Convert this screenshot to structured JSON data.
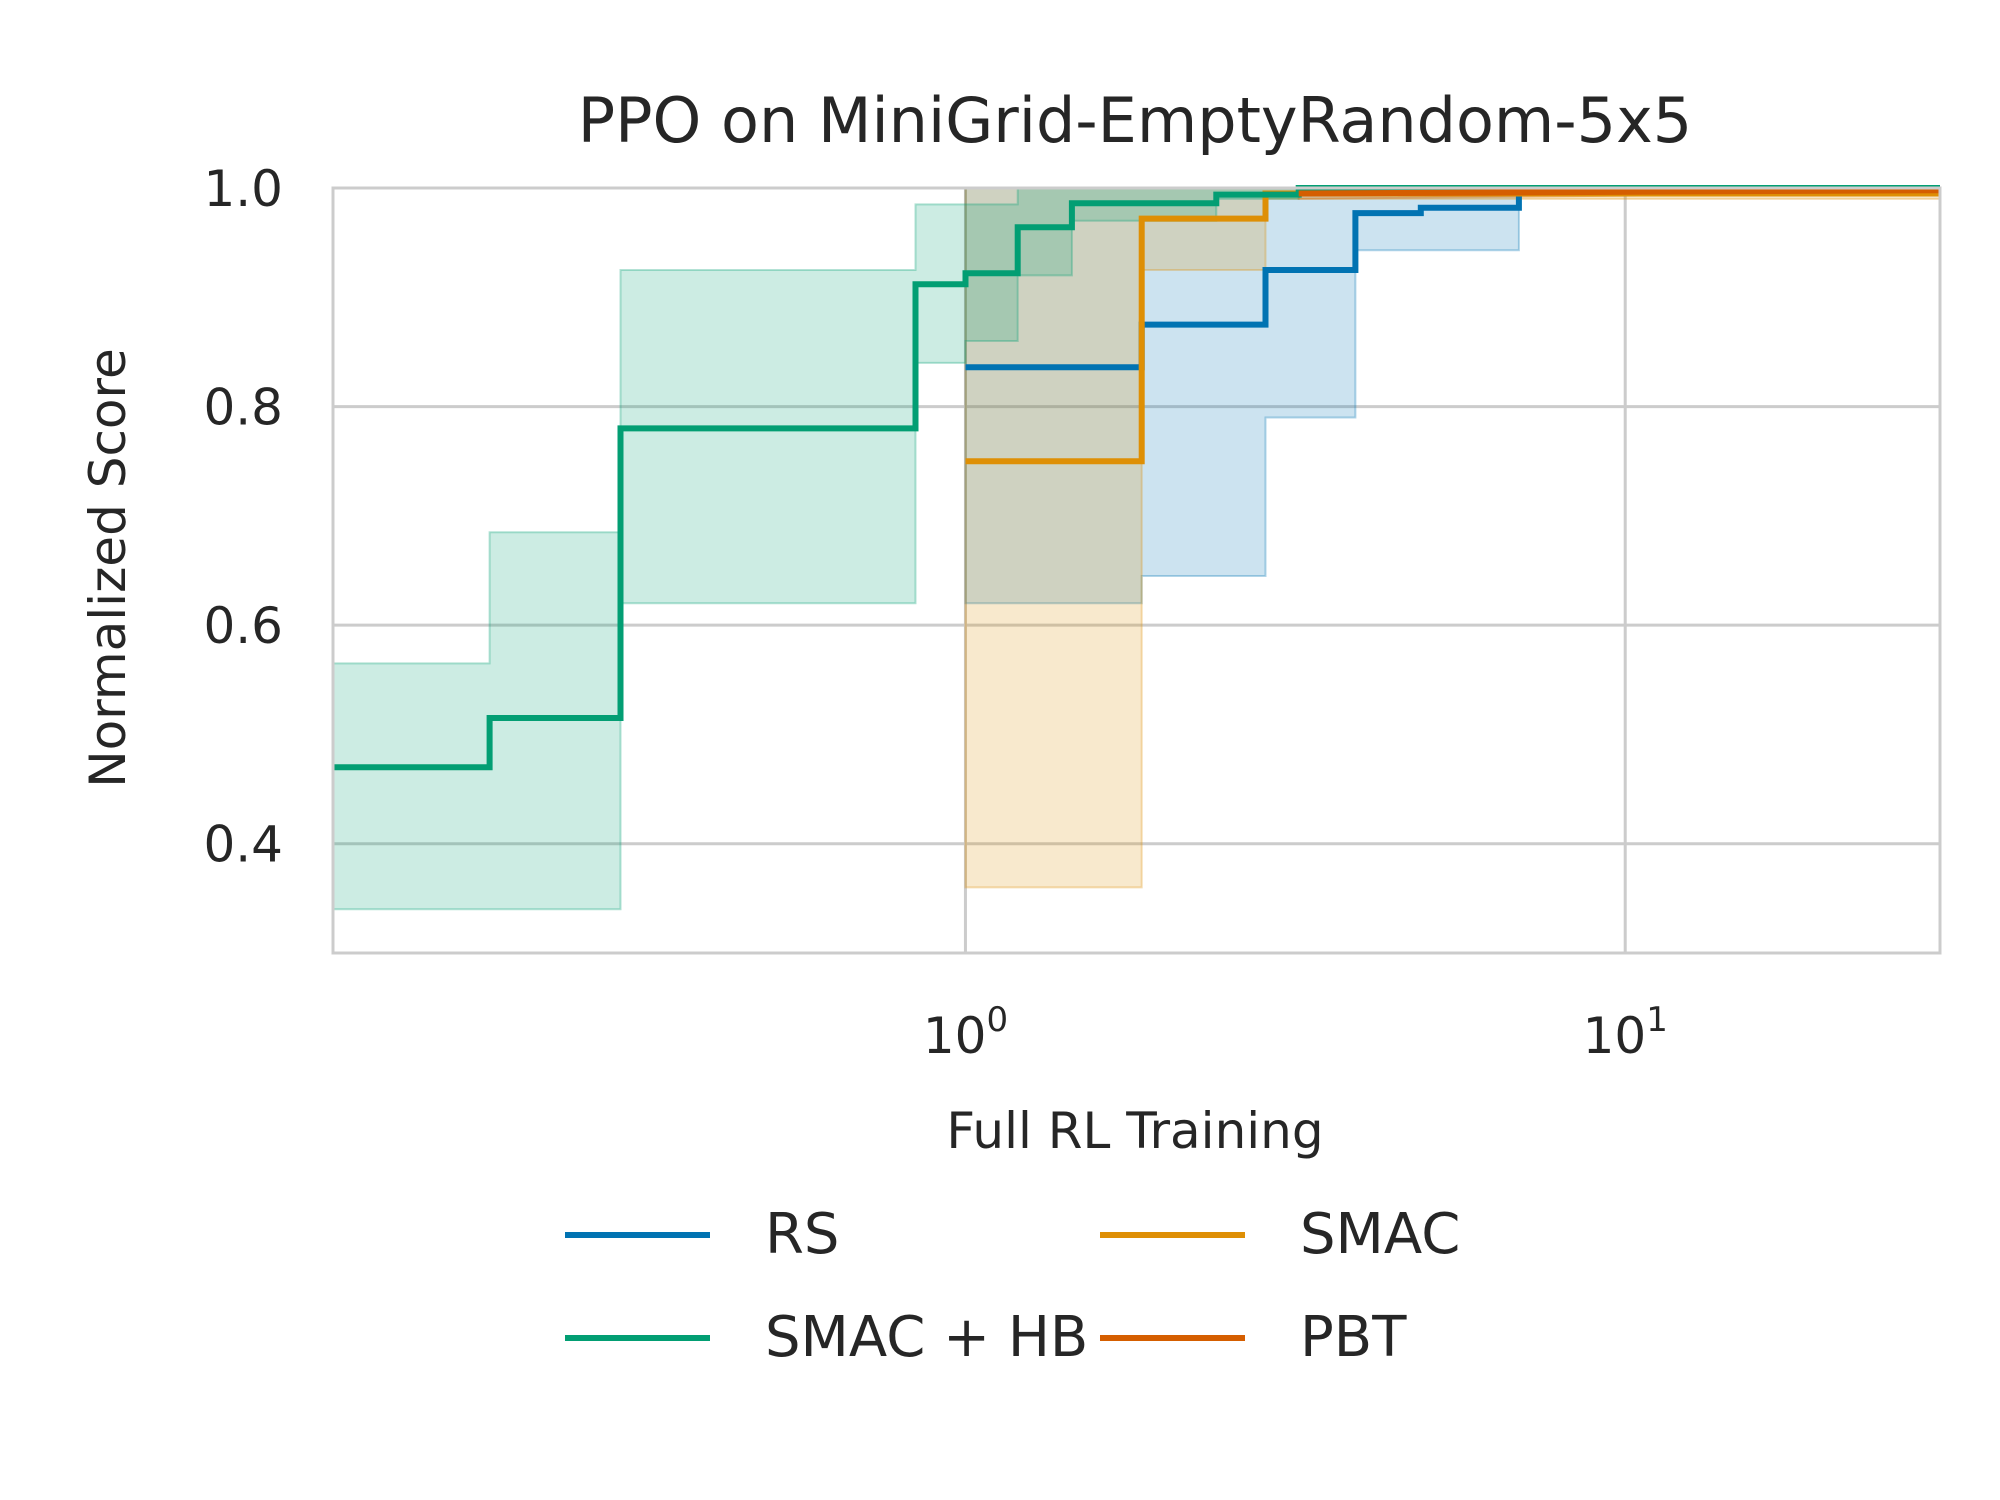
{
  "chart_data": {
    "type": "line",
    "title": "PPO on MiniGrid-EmptyRandom-5x5",
    "xlabel": "Full RL Training",
    "ylabel": "Normalized Score",
    "xscale": "log",
    "xlim": [
      0.11,
      30
    ],
    "ylim": [
      0.3,
      1.0
    ],
    "grid": true,
    "legend_position": "bottom-center",
    "legend_columns": 2,
    "x_ticks": [
      {
        "value": 1,
        "base": "10",
        "exp": "0"
      },
      {
        "value": 10,
        "base": "10",
        "exp": "1"
      }
    ],
    "y_ticks": [
      {
        "value": 0.4,
        "label": "0.4"
      },
      {
        "value": 0.6,
        "label": "0.6"
      },
      {
        "value": 0.8,
        "label": "0.8"
      },
      {
        "value": 1.0,
        "label": "1.0"
      }
    ],
    "series": [
      {
        "name": "RS",
        "color": "#0173b2",
        "x": [
          1.0,
          1.85,
          1.85,
          2.85,
          2.85,
          3.9,
          3.9,
          4.9,
          4.9,
          6.9,
          6.9,
          30
        ],
        "y": [
          0.836,
          0.836,
          0.875,
          0.875,
          0.925,
          0.925,
          0.977,
          0.977,
          0.982,
          0.982,
          1.0,
          1.0
        ],
        "band_upper": [
          1.0,
          1.0,
          1.0,
          1.0,
          1.0,
          1.0,
          1.0,
          1.0,
          1.0,
          1.0,
          1.0,
          1.0
        ],
        "band_lower": [
          0.62,
          0.62,
          0.645,
          0.645,
          0.79,
          0.79,
          0.943,
          0.943,
          0.943,
          0.943,
          1.0,
          1.0
        ]
      },
      {
        "name": "SMAC",
        "color": "#de8f05",
        "x": [
          1.0,
          1.85,
          1.85,
          2.3,
          2.3,
          2.85,
          2.85,
          30
        ],
        "y": [
          0.75,
          0.75,
          0.972,
          0.972,
          0.972,
          0.972,
          0.995,
          0.995
        ],
        "band_upper": [
          1.0,
          1.0,
          1.0,
          1.0,
          1.0,
          1.0,
          1.0,
          1.0
        ],
        "band_lower": [
          0.36,
          0.36,
          0.925,
          0.925,
          0.925,
          0.925,
          0.99,
          0.99
        ]
      },
      {
        "name": "SMAC + HB",
        "color": "#029e73",
        "x": [
          0.11,
          0.19,
          0.19,
          0.3,
          0.3,
          0.84,
          0.84,
          1.0,
          1.0,
          1.2,
          1.2,
          1.45,
          1.45,
          2.4,
          2.4,
          3.2,
          3.2,
          30
        ],
        "y": [
          0.47,
          0.47,
          0.515,
          0.515,
          0.78,
          0.78,
          0.912,
          0.912,
          0.922,
          0.922,
          0.964,
          0.964,
          0.986,
          0.986,
          0.994,
          0.994,
          1.0,
          1.0
        ],
        "band_upper": [
          0.565,
          0.565,
          0.685,
          0.685,
          0.925,
          0.925,
          0.985,
          0.985,
          0.985,
          0.985,
          1.0,
          1.0,
          1.0,
          1.0,
          1.0,
          1.0,
          1.0,
          1.0
        ],
        "band_lower": [
          0.34,
          0.34,
          0.34,
          0.34,
          0.62,
          0.62,
          0.84,
          0.84,
          0.86,
          0.86,
          0.92,
          0.92,
          0.97,
          0.97,
          0.99,
          0.99,
          1.0,
          1.0
        ]
      },
      {
        "name": "PBT",
        "color": "#d55e00",
        "x": [
          3.2,
          30
        ],
        "y": [
          0.995,
          0.998
        ],
        "band_upper": [
          1.0,
          1.0
        ],
        "band_lower": [
          0.99,
          0.996
        ]
      }
    ]
  }
}
